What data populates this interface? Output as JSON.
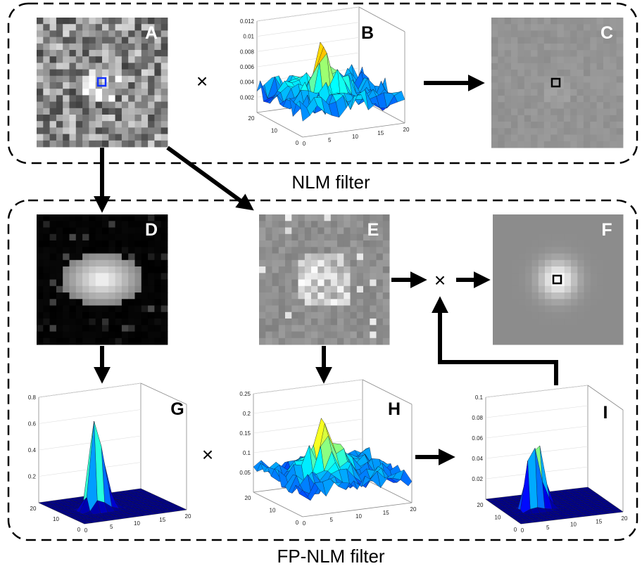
{
  "panels": [
    {
      "label": "A"
    },
    {
      "label": "B"
    },
    {
      "label": "C"
    },
    {
      "label": "D"
    },
    {
      "label": "E"
    },
    {
      "label": "F"
    },
    {
      "label": "G"
    },
    {
      "label": "H"
    },
    {
      "label": "I"
    }
  ],
  "groups": {
    "nlm": {
      "label": "NLM filter"
    },
    "fp_nlm": {
      "label": "FP-NLM filter"
    }
  },
  "operators": [
    "×",
    "×",
    "×"
  ],
  "plots": {
    "B": {
      "z_ticks": [
        "0.012",
        "0.01",
        "0.008",
        "0.006",
        "0.004",
        "0.002"
      ],
      "y_ticks": [
        "20",
        "10",
        "0"
      ],
      "x_ticks": [
        "0",
        "5",
        "10",
        "15",
        "20"
      ]
    },
    "G": {
      "z_ticks": [
        "0.8",
        "0.6",
        "0.4",
        "0.2"
      ],
      "y_ticks": [
        "20",
        "10",
        "0"
      ],
      "x_ticks": [
        "0",
        "5",
        "10",
        "15",
        "20"
      ]
    },
    "H": {
      "z_ticks": [
        "0.25",
        "0.2",
        "0.15",
        "0.1",
        "0.05"
      ],
      "y_ticks": [
        "20",
        "10",
        "0"
      ],
      "x_ticks": [
        "0",
        "5",
        "10",
        "15",
        "20"
      ]
    },
    "I": {
      "z_ticks": [
        "0.1",
        "0.08",
        "0.06",
        "0.04",
        "0.02"
      ],
      "y_ticks": [
        "20",
        "10",
        "0"
      ],
      "x_ticks": [
        "0",
        "5",
        "10",
        "15",
        "20"
      ]
    }
  }
}
